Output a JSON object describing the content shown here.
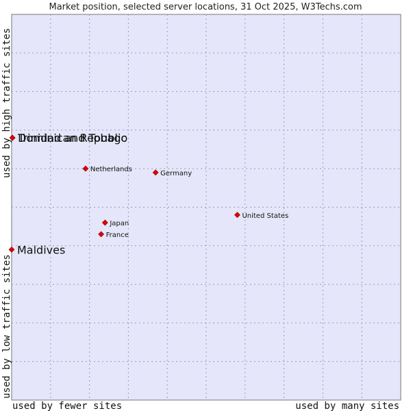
{
  "chart_data": {
    "type": "scatter",
    "title": "Market position, selected server locations, 31 Oct 2025, W3Techs.com",
    "xlabel_left": "used by fewer sites",
    "xlabel_right": "used by many sites",
    "ylabel_bottom": "used by low traffic sites",
    "ylabel_top": "used by high traffic sites",
    "grid": true,
    "xlim": [
      0,
      10
    ],
    "ylim": [
      0,
      10
    ],
    "background_color": "#e6e6fa",
    "point_color": "#e00000",
    "points": [
      {
        "name": "Dominican Republic",
        "x": 0.02,
        "y": 6.8,
        "size": "large"
      },
      {
        "name": "Trinidad and Tobago",
        "x": 0.02,
        "y": 6.8,
        "size": "large"
      },
      {
        "name": "Maldives",
        "x": 0.0,
        "y": 3.9,
        "size": "large"
      },
      {
        "name": "Netherlands",
        "x": 1.9,
        "y": 6.0,
        "size": "small"
      },
      {
        "name": "Germany",
        "x": 3.7,
        "y": 5.9,
        "size": "small"
      },
      {
        "name": "United States",
        "x": 5.8,
        "y": 4.8,
        "size": "small"
      },
      {
        "name": "Japan",
        "x": 2.4,
        "y": 4.6,
        "size": "small"
      },
      {
        "name": "France",
        "x": 2.3,
        "y": 4.3,
        "size": "small"
      }
    ]
  }
}
